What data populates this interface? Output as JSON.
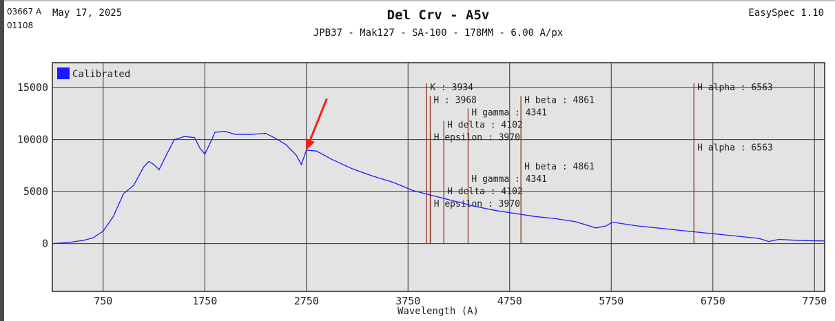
{
  "header": {
    "id_line1": "03667 A",
    "id_line2": "01108",
    "date": "May 17, 2025",
    "title": "Del Crv - A5v",
    "subtitle": "JPB37 - Mak127 - SA-100 - 178MM - 6.00 A/px",
    "software": "EasySpec 1.10"
  },
  "chart_data": {
    "type": "line",
    "xlabel": "Wavelength (A)",
    "ylabel": "",
    "xlim": [
      250,
      7850
    ],
    "ylim": [
      -4600,
      17400
    ],
    "x_ticks": [
      750,
      1750,
      2750,
      3750,
      4750,
      5750,
      6750,
      7750
    ],
    "y_ticks": [
      0,
      5000,
      10000,
      15000
    ],
    "grid": true,
    "legend": {
      "position": "top-left",
      "entries": [
        "Calibrated"
      ]
    },
    "colors": {
      "series": "#1a1aff",
      "lines": "#8b2a1a",
      "arrow": "#ff1a1a",
      "plot_bg": "#e3e3e3"
    },
    "series": [
      {
        "name": "Calibrated",
        "x": [
          250,
          400,
          550,
          650,
          750,
          850,
          950,
          1050,
          1150,
          1200,
          1250,
          1300,
          1350,
          1450,
          1550,
          1650,
          1700,
          1750,
          1800,
          1850,
          1950,
          2050,
          2200,
          2350,
          2450,
          2550,
          2650,
          2700,
          2750,
          2850,
          3000,
          3200,
          3400,
          3600,
          3800,
          4000,
          4200,
          4400,
          4600,
          4800,
          5000,
          5200,
          5400,
          5600,
          5700,
          5750,
          5800,
          6000,
          6200,
          6400,
          6600,
          6800,
          7000,
          7200,
          7300,
          7400,
          7600,
          7850
        ],
        "values": [
          0,
          100,
          300,
          550,
          1200,
          2600,
          4800,
          5600,
          7400,
          7900,
          7600,
          7100,
          8100,
          10000,
          10300,
          10200,
          9200,
          8600,
          9600,
          10700,
          10800,
          10500,
          10500,
          10600,
          10100,
          9500,
          8500,
          7600,
          9000,
          8900,
          8100,
          7200,
          6500,
          5900,
          5100,
          4600,
          4100,
          3600,
          3200,
          2900,
          2600,
          2400,
          2100,
          1500,
          1700,
          2000,
          2000,
          1700,
          1500,
          1300,
          1100,
          900,
          700,
          500,
          200,
          400,
          300,
          250
        ]
      }
    ],
    "vlines_top": [
      {
        "x": 3934,
        "label": "K : 3934",
        "top": 15400
      },
      {
        "x": 3968,
        "label": "H : 3968",
        "top": 14200
      },
      {
        "x": 4341,
        "label": "H gamma : 4341",
        "top": 13000
      },
      {
        "x": 4102,
        "label": "H delta : 4102",
        "top": 11800
      },
      {
        "x": 3970,
        "label": "H epsilon : 3970",
        "top": 10600
      },
      {
        "x": 4861,
        "label": "H beta : 4861",
        "top": 14200
      },
      {
        "x": 6563,
        "label": "H alpha : 6563",
        "top": 15400
      }
    ],
    "labels_lower": [
      {
        "x": 4861,
        "label": "H beta : 4861",
        "y": 7800
      },
      {
        "x": 4341,
        "label": "H gamma : 4341",
        "y": 6600
      },
      {
        "x": 4102,
        "label": "H delta : 4102",
        "y": 5400
      },
      {
        "x": 3970,
        "label": "H epsilon : 3970",
        "y": 4200
      },
      {
        "x": 6563,
        "label": "H alpha : 6563",
        "y": 9600
      }
    ],
    "arrow": {
      "target_x": 2700,
      "target_y": 8700
    }
  }
}
